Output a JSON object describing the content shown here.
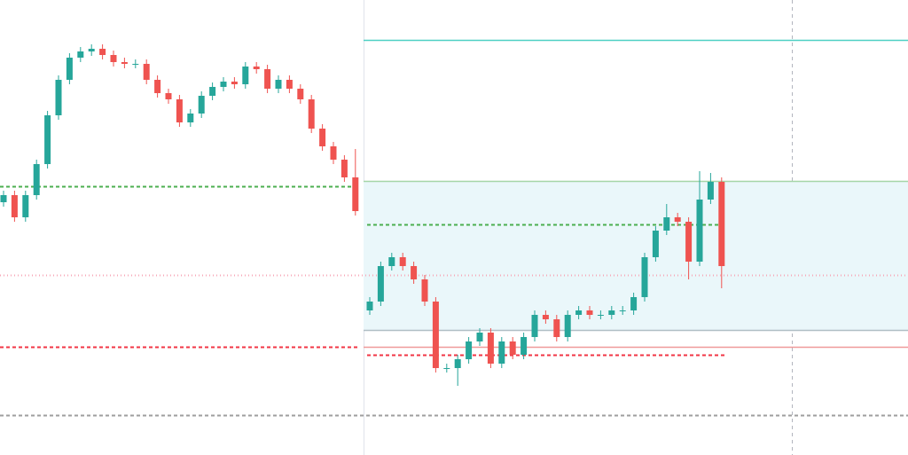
{
  "chart_data": {
    "type": "candlestick",
    "up_color": "#26a69a",
    "down_color": "#ef5350",
    "ylim": [
      0,
      513
    ],
    "open": [
      285,
      293,
      268,
      293,
      328,
      383,
      423,
      448,
      455,
      458,
      451,
      443,
      441,
      441,
      423,
      408,
      401,
      375,
      385,
      405,
      415,
      421,
      418,
      438,
      435,
      413,
      423,
      413,
      401,
      368,
      348,
      333,
      313,
      163,
      173,
      213,
      223,
      213,
      198,
      173,
      98,
      98,
      108,
      128,
      138,
      103,
      128,
      113,
      133,
      158,
      153,
      133,
      158,
      163,
      158,
      158,
      163,
      163,
      178,
      223,
      253,
      268,
      263,
      218,
      288,
      308
    ],
    "high": [
      298,
      298,
      298,
      333,
      388,
      428,
      453,
      460,
      463,
      463,
      456,
      448,
      446,
      446,
      428,
      413,
      406,
      390,
      410,
      420,
      426,
      426,
      443,
      443,
      440,
      428,
      428,
      418,
      406,
      373,
      353,
      338,
      345,
      178,
      218,
      228,
      228,
      218,
      203,
      178,
      103,
      113,
      133,
      143,
      143,
      133,
      133,
      138,
      163,
      163,
      158,
      163,
      168,
      168,
      163,
      168,
      168,
      183,
      228,
      258,
      283,
      273,
      268,
      320,
      318,
      313
    ],
    "low": [
      280,
      263,
      263,
      288,
      323,
      378,
      418,
      443,
      450,
      446,
      438,
      436,
      436,
      418,
      403,
      396,
      370,
      370,
      380,
      400,
      410,
      413,
      413,
      430,
      408,
      408,
      408,
      396,
      363,
      343,
      328,
      308,
      270,
      158,
      168,
      208,
      208,
      193,
      168,
      93,
      93,
      78,
      103,
      123,
      98,
      98,
      108,
      108,
      128,
      148,
      128,
      128,
      153,
      153,
      153,
      153,
      158,
      158,
      173,
      218,
      248,
      258,
      198,
      213,
      283,
      188
    ],
    "close": [
      293,
      268,
      293,
      328,
      383,
      423,
      448,
      455,
      458,
      451,
      443,
      441,
      441,
      423,
      408,
      401,
      375,
      385,
      405,
      415,
      421,
      418,
      438,
      435,
      413,
      423,
      413,
      401,
      368,
      348,
      333,
      313,
      275,
      173,
      213,
      223,
      213,
      198,
      173,
      98,
      98,
      108,
      128,
      138,
      103,
      128,
      113,
      133,
      158,
      153,
      133,
      158,
      163,
      158,
      158,
      163,
      163,
      178,
      223,
      253,
      268,
      263,
      218,
      288,
      308,
      213
    ],
    "zone": {
      "range": [
        141,
        309
      ],
      "color": "#eaf7fa",
      "span": "right"
    },
    "levels": [
      {
        "value": 468,
        "color": "#4dd0c4",
        "style": "solid",
        "span": "right"
      },
      {
        "value": 309,
        "color": "#a5d6a7",
        "style": "solid",
        "span": "right"
      },
      {
        "value": 141,
        "color": "#b0bec5",
        "style": "solid",
        "span": "right"
      },
      {
        "value": 122,
        "color": "#ef9a9a",
        "style": "solid",
        "span": "right"
      },
      {
        "value": 303,
        "color": "#4caf50",
        "style": "dashed",
        "span": "left"
      },
      {
        "value": 260,
        "color": "#4caf50",
        "style": "dashed",
        "span": "right-candles"
      },
      {
        "value": 122,
        "color": "#f23645",
        "style": "dashed",
        "span": "left"
      },
      {
        "value": 113,
        "color": "#f23645",
        "style": "dashed",
        "span": "right-candles"
      },
      {
        "value": 203,
        "color": "#f7a8b8",
        "style": "dotted",
        "span": "full"
      },
      {
        "value": 45,
        "color": "#9e9e9e",
        "style": "dashed",
        "span": "full"
      }
    ]
  }
}
